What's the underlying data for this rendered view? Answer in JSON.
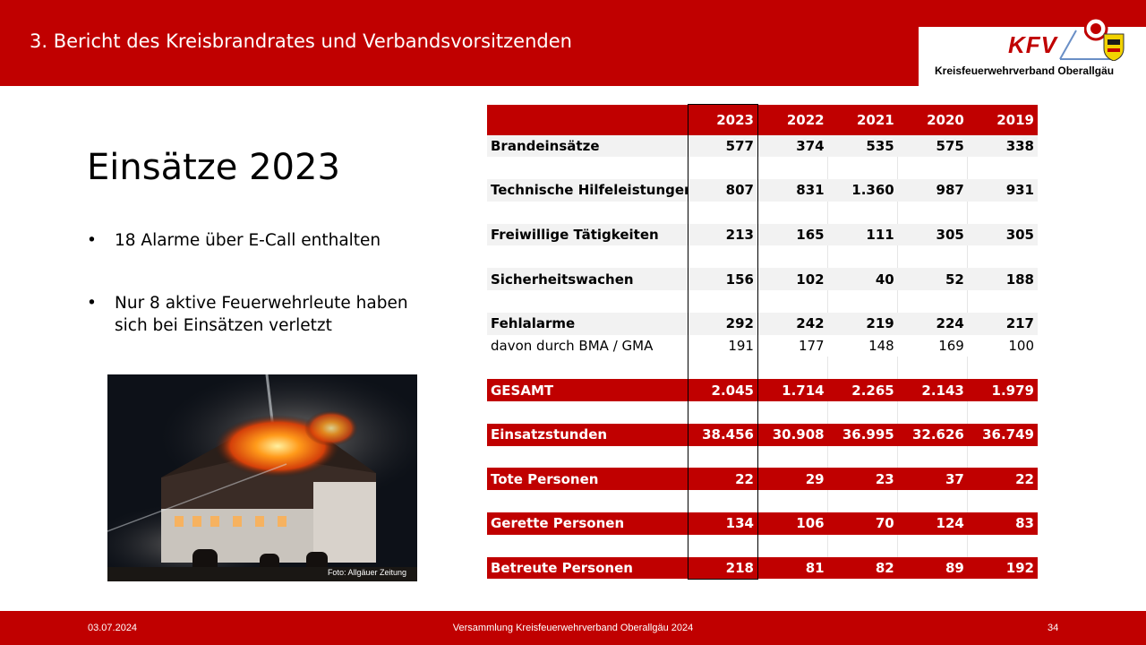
{
  "header": {
    "title": "3. Bericht des Kreisbrandrates und Verbandsvorsitzenden",
    "logo_text": "KFV",
    "logo_subtitle": "Kreisfeuerwehrverband  Oberallgäu"
  },
  "slide": {
    "heading": "Einsätze 2023",
    "bullets": [
      "18 Alarme über E-Call enthalten",
      "Nur 8 aktive Feuerwehrleute  haben sich bei Einsätzen verletzt"
    ],
    "photo_caption": "Foto: Allgäuer Zeitung"
  },
  "table": {
    "years": [
      "2023",
      "2022",
      "2021",
      "2020",
      "2019"
    ],
    "rows": {
      "brand": {
        "label": "Brandeinsätze",
        "values": [
          "577",
          "374",
          "535",
          "575",
          "338"
        ]
      },
      "tech": {
        "label": "Technische Hilfeleistungen",
        "values": [
          "807",
          "831",
          "1.360",
          "987",
          "931"
        ]
      },
      "frei": {
        "label": "Freiwillige Tätigkeiten",
        "values": [
          "213",
          "165",
          "111",
          "305",
          "305"
        ]
      },
      "sich": {
        "label": "Sicherheitswachen",
        "values": [
          "156",
          "102",
          "40",
          "52",
          "188"
        ]
      },
      "fehl": {
        "label": "Fehlalarme",
        "values": [
          "292",
          "242",
          "219",
          "224",
          "217"
        ]
      },
      "bma": {
        "label": "davon durch BMA / GMA",
        "values": [
          "191",
          "177",
          "148",
          "169",
          "100"
        ]
      },
      "gesamt": {
        "label": "GESAMT",
        "values": [
          "2.045",
          "1.714",
          "2.265",
          "2.143",
          "1.979"
        ]
      },
      "stunden": {
        "label": "Einsatzstunden",
        "values": [
          "38.456",
          "30.908",
          "36.995",
          "32.626",
          "36.749"
        ]
      },
      "tote": {
        "label": "Tote Personen",
        "values": [
          "22",
          "29",
          "23",
          "37",
          "22"
        ]
      },
      "gerettet": {
        "label": "Gerette Personen",
        "values": [
          "134",
          "106",
          "70",
          "124",
          "83"
        ]
      },
      "betreut": {
        "label": "Betreute Personen",
        "values": [
          "218",
          "81",
          "82",
          "89",
          "192"
        ]
      }
    }
  },
  "footer": {
    "date": "03.07.2024",
    "center": "Versammlung Kreisfeuerwehrverband Oberallgäu 2024",
    "page": "34"
  },
  "colors": {
    "brand_red": "#c00000",
    "row_gray": "#f2f2f2"
  }
}
